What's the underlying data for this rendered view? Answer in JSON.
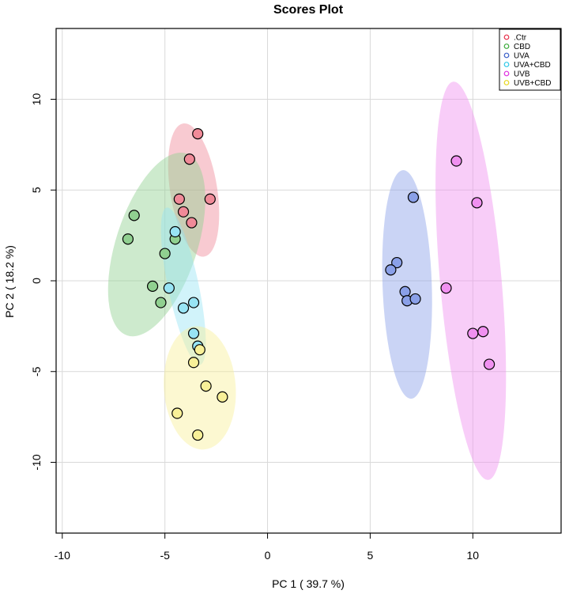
{
  "chart_data": {
    "type": "scatter",
    "title": "Scores Plot",
    "xlabel": "PC 1 ( 39.7 %)",
    "ylabel": "PC 2 ( 18.2 %)",
    "xlim": [
      -10.3,
      14.3
    ],
    "ylim": [
      -13.9,
      13.9
    ],
    "xticks": [
      -10,
      -5,
      0,
      5,
      10
    ],
    "yticks": [
      -10,
      -5,
      0,
      5,
      10
    ],
    "xtick_labels": [
      "-10",
      "-5",
      "0",
      "5",
      "10"
    ],
    "ytick_labels": [
      "-10",
      "-5",
      "0",
      "5",
      "10"
    ],
    "grid": true,
    "legend_position": "top-right",
    "series": [
      {
        "name": ".Ctr",
        "color": "#e8304a",
        "fill": "#f08a98",
        "ellipse": {
          "cx": -3.6,
          "cy": 5.0,
          "rx": 3.7,
          "ry": 1.15,
          "angle_deg": 99
        },
        "points": [
          [
            -3.4,
            8.1
          ],
          [
            -3.8,
            6.7
          ],
          [
            -4.3,
            4.5
          ],
          [
            -4.1,
            3.8
          ],
          [
            -3.7,
            3.2
          ],
          [
            -2.8,
            4.5
          ]
        ]
      },
      {
        "name": "CBD",
        "color": "#3aaa3a",
        "fill": "#90d090",
        "ellipse": {
          "cx": -5.4,
          "cy": 2.0,
          "rx": 5.2,
          "ry": 2.0,
          "angle_deg": 72
        },
        "points": [
          [
            -6.5,
            3.6
          ],
          [
            -6.8,
            2.3
          ],
          [
            -4.5,
            2.3
          ],
          [
            -5.0,
            1.5
          ],
          [
            -5.6,
            -0.3
          ],
          [
            -5.2,
            -1.2
          ]
        ]
      },
      {
        "name": "UVA",
        "color": "#3a5fc8",
        "fill": "#8aa0e8",
        "ellipse": {
          "cx": 6.8,
          "cy": -0.2,
          "rx": 6.3,
          "ry": 1.2,
          "angle_deg": 92
        },
        "points": [
          [
            7.1,
            4.6
          ],
          [
            6.3,
            1.0
          ],
          [
            6.0,
            0.6
          ],
          [
            6.7,
            -0.6
          ],
          [
            6.8,
            -1.1
          ],
          [
            7.2,
            -1.0
          ]
        ]
      },
      {
        "name": "UVA+CBD",
        "color": "#30c8e8",
        "fill": "#98e4f4",
        "ellipse": {
          "cx": -4.1,
          "cy": -0.3,
          "rx": 4.4,
          "ry": 0.75,
          "angle_deg": 102
        },
        "points": [
          [
            -4.5,
            2.7
          ],
          [
            -4.8,
            -0.4
          ],
          [
            -4.1,
            -1.5
          ],
          [
            -3.6,
            -1.2
          ],
          [
            -3.6,
            -2.9
          ],
          [
            -3.4,
            -3.6
          ]
        ]
      },
      {
        "name": "UVB",
        "color": "#e030e0",
        "fill": "#f090f0",
        "ellipse": {
          "cx": 9.9,
          "cy": 0.0,
          "rx": 11.0,
          "ry": 1.5,
          "angle_deg": 95
        },
        "points": [
          [
            9.2,
            6.6
          ],
          [
            10.2,
            4.3
          ],
          [
            8.7,
            -0.4
          ],
          [
            10.0,
            -2.9
          ],
          [
            10.5,
            -2.8
          ],
          [
            10.8,
            -4.6
          ]
        ]
      },
      {
        "name": "UVB+CBD",
        "color": "#e8d820",
        "fill": "#f8f098",
        "ellipse": {
          "cx": -3.3,
          "cy": -5.9,
          "rx": 3.4,
          "ry": 1.75,
          "angle_deg": 94
        },
        "points": [
          [
            -3.3,
            -3.8
          ],
          [
            -3.6,
            -4.5
          ],
          [
            -3.0,
            -5.8
          ],
          [
            -2.2,
            -6.4
          ],
          [
            -4.4,
            -7.3
          ],
          [
            -3.4,
            -8.5
          ]
        ]
      }
    ]
  }
}
